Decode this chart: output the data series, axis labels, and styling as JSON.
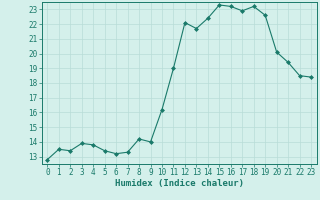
{
  "x": [
    0,
    1,
    2,
    3,
    4,
    5,
    6,
    7,
    8,
    9,
    10,
    11,
    12,
    13,
    14,
    15,
    16,
    17,
    18,
    19,
    20,
    21,
    22,
    23
  ],
  "y": [
    12.8,
    13.5,
    13.4,
    13.9,
    13.8,
    13.4,
    13.2,
    13.3,
    14.2,
    14.0,
    16.2,
    19.0,
    22.1,
    21.7,
    22.4,
    23.3,
    23.2,
    22.9,
    23.2,
    22.6,
    20.1,
    19.4,
    18.5,
    18.4
  ],
  "line_color": "#1a7a6a",
  "marker": "D",
  "marker_size": 2.0,
  "bg_color": "#d4f0eb",
  "grid_color": "#b8ddd7",
  "xlabel": "Humidex (Indice chaleur)",
  "xlim": [
    -0.5,
    23.5
  ],
  "ylim": [
    12.5,
    23.5
  ],
  "yticks": [
    13,
    14,
    15,
    16,
    17,
    18,
    19,
    20,
    21,
    22,
    23
  ],
  "axis_color": "#1a7a6a",
  "tick_color": "#1a7a6a",
  "label_fontsize": 6.5,
  "tick_fontsize": 5.5
}
